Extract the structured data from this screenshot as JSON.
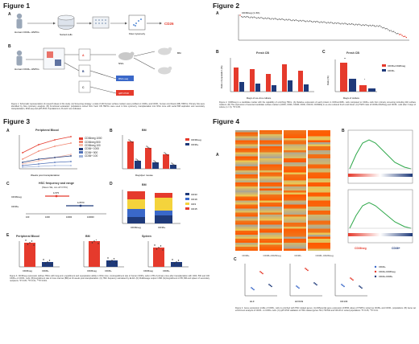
{
  "figure1": {
    "title": "Figure 1",
    "panel_a": "A",
    "panel_b": "B",
    "labels": {
      "donor_a": "Human CD34+ HSPCs",
      "donor_b": "Human CD34+ HSPCs",
      "sorting": "Sorted cells",
      "flow": "Flow cytometry",
      "cd26": "CD26",
      "cd36neg": "CD36−",
      "cd36pos": "CD36+",
      "nsg": "NSG",
      "bm": "BM",
      "rna": "RNA-seq",
      "qpcr": "qRT-PCR"
    },
    "caption": "Figure 1. Schematic representation of research ideas in this study. (A) Screening strategy: a total of 240 human surface markers were profiled on CD34+ and CD36− human cord blood (CB) HSPCs. Primary hits were identified by flow cytometry analysis. (B) Functional evaluation: populations sorted from fresh CB HSPCs were used in flow cytometry, transplantation into NSG mice with serial BM aspiration and secondary transplantation, RNA-seq and qRT-PCR. Populations A, B and C are indicated."
  },
  "figure2": {
    "title": "Figure 2",
    "panel_a": "A",
    "panel_b": "B",
    "panel_c": "C",
    "callout": "CD36neg (1.4%)",
    "b_title": "Fresh CB",
    "c_title": "Fresh CB",
    "b_xlabel": "Days of ex-vivo culture",
    "c_xlabel": "Days of culture",
    "b_ylabel": "Ratio of population (%)",
    "c_ylabel": "Ratio (%)",
    "legend": [
      "CD36+CD26neg",
      "CD36−"
    ],
    "caption": "Figure 2. CD36neg is a candidate marker with the capability of enriching HSCs. (A) Relative expression of each protein in CD34+CD38− cells compared to CD34+ cells from primary screening including 240 surface markers. (B) The expression of selected candidate surface markers (CD36, CD26, CD49f, CD90, CD133, CD45RA) in ex-vivo cultured fresh cord blood. (C) HSPC ratio of CD36+CD26neg and CD36− cells after 3 days of culture (n = 3). *P<0.05."
  },
  "figure3": {
    "title": "Figure 3",
    "panel_a": "A",
    "panel_b": "B",
    "panel_c": "C",
    "panel_d": "D",
    "panel_e": "E",
    "a_title": "Peripheral Blood",
    "b_title": "BM",
    "c_title": "HSC frequency and range",
    "c_subtitle": "(Mean SE, cut-off 0.5%)",
    "d_title": "BM",
    "e1_title": "Peripheral Blood",
    "e2_title": "BM",
    "e3_title": "Spleen",
    "a_xlabel": "Weeks post transplantation",
    "b_xlabel": "Days/per mouse",
    "a_legend": [
      "CD36neg 1000",
      "CD36neg 500",
      "CD36neg 100",
      "CD36+ 1000",
      "CD36+ 500",
      "CD36+ 100"
    ],
    "b_legend": [
      "CD36neg",
      "CD36+"
    ],
    "d_legend": [
      "CD33",
      "CD19",
      "CD3",
      "CD15"
    ],
    "c_rows": [
      "CD36neg",
      "CD36+"
    ],
    "c_values": [
      "1/375",
      "1/2570"
    ],
    "c_xticks": [
      "100",
      "1000",
      "10000",
      "100000"
    ],
    "d_xticks": [
      "CD36neg",
      "CD36+"
    ],
    "e_xticks": [
      "CD36neg",
      "CD36+"
    ],
    "caption": "Figure 3. CD36neg expression defines HSCs with long-term engraftment and repopulation ability in NSG mice. (A) Engraftment rate of human CD45+ cells in PB of primary mice after transplantation with 1000, 500 and 100 CD36+ or CD36− cells. (B) Engraftment rate in bone marrow (BM) at 16 weeks post-transplantation. (C) HSC frequency calculated by ELDA. (D) Multilineage output in BM. (E) Engraftment in PB, BM and spleen of secondary recipients. *P<0.05, **P<0.01, ***P<0.001."
  },
  "figure4": {
    "title": "Figure 4",
    "panel_a": "A",
    "panel_b": "B",
    "panel_c": "C",
    "a_columns": [
      "CD36+",
      "CD36+CD26neg",
      "CD36−",
      "CD36−CD26neg"
    ],
    "b_labels": [
      "CD36neg",
      "CD36+"
    ],
    "c_legend": [
      "CD34+",
      "CD34+CD36neg",
      "CD34+CD36+"
    ],
    "c_xlabels": [
      "HLF",
      "HOXA9",
      "CD133"
    ],
    "caption": "Figure 4. Gene expression profile of CD36− cells is enriched with HSC related genes. (A) Differential gene expression (FPKM value) of HSPCs sorted as CD36+ and CD36− populations. (B) Gene set enrichment analysis of CD36− vs CD36+ cells. (C) qRT-PCR validation of HSC-related genes HLF, HOXA9 and CD133 in sorted populations. *P<0.05, **P<0.01."
  },
  "colors": {
    "red": "#e53a2c",
    "navy": "#1f3a7a",
    "blue": "#3a68c9",
    "yellow": "#f4d33c",
    "gray": "#9a9a9a"
  }
}
